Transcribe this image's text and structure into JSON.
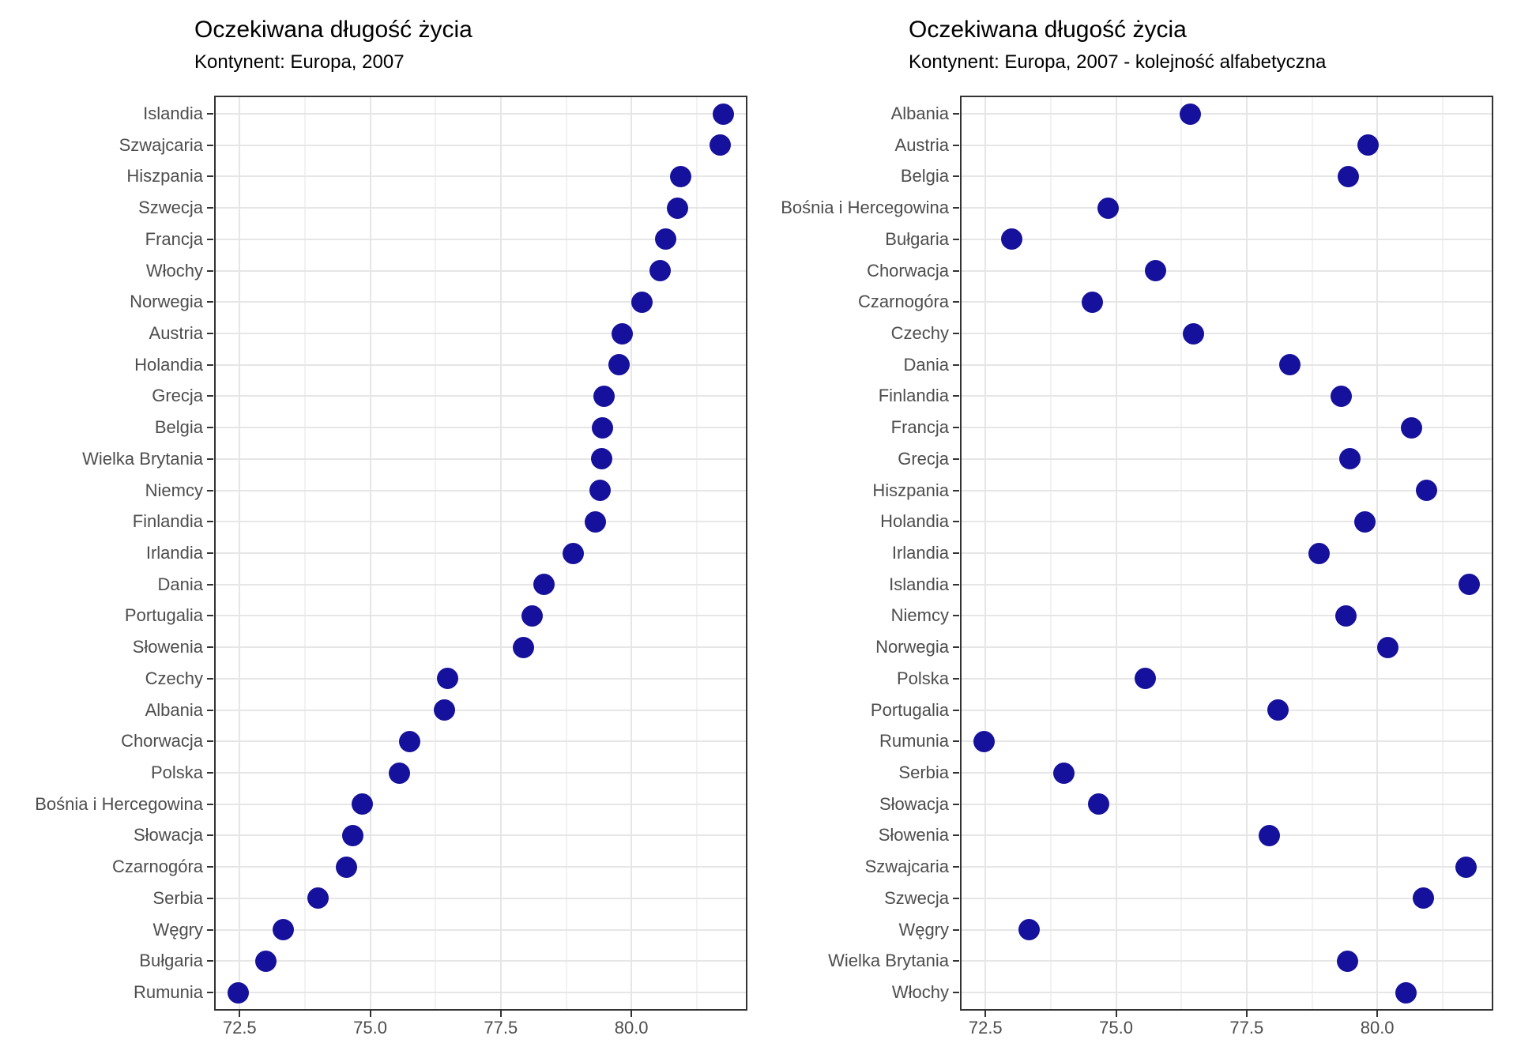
{
  "colors": {
    "point": "#16119C",
    "grid_major": "#E6E6E6",
    "grid_minor": "#F2F2F2",
    "axis_text": "#4D4D4D",
    "panel_border": "#333333",
    "title_text": "#000000",
    "background": "#FFFFFF"
  },
  "chart_data": [
    {
      "type": "scatter",
      "variant": "cleveland-dotplot",
      "title": "Oczekiwana długość życia",
      "subtitle": "Kontynent: Europa, 2007",
      "xlabel": "",
      "ylabel": "",
      "xlim": [
        72.012,
        82.221
      ],
      "grid": true,
      "legend": "none",
      "x_axis": {
        "ticks": [
          72.5,
          75.0,
          77.5,
          80.0
        ],
        "tick_labels": [
          "72.5",
          "75.0",
          "77.5",
          "80.0"
        ],
        "minor_ticks": [
          73.75,
          76.25,
          78.75,
          81.25
        ]
      },
      "categories": [
        "Islandia",
        "Szwajcaria",
        "Hiszpania",
        "Szwecja",
        "Francja",
        "Włochy",
        "Norwegia",
        "Austria",
        "Holandia",
        "Grecja",
        "Belgia",
        "Wielka Brytania",
        "Niemcy",
        "Finlandia",
        "Irlandia",
        "Dania",
        "Portugalia",
        "Słowenia",
        "Czechy",
        "Albania",
        "Chorwacja",
        "Polska",
        "Bośnia i Hercegowina",
        "Słowacja",
        "Czarnogóra",
        "Serbia",
        "Węgry",
        "Bułgaria",
        "Rumunia"
      ],
      "values": [
        81.757,
        81.701,
        80.941,
        80.884,
        80.657,
        80.546,
        80.196,
        79.829,
        79.762,
        79.483,
        79.441,
        79.425,
        79.406,
        79.313,
        78.885,
        78.332,
        78.098,
        77.926,
        76.486,
        76.423,
        75.748,
        75.563,
        74.852,
        74.663,
        74.543,
        74.002,
        73.338,
        73.005,
        72.476
      ]
    },
    {
      "type": "scatter",
      "variant": "cleveland-dotplot",
      "title": "Oczekiwana długość życia",
      "subtitle": "Kontynent: Europa, 2007 - kolejność alfabetyczna",
      "xlabel": "",
      "ylabel": "",
      "xlim": [
        72.012,
        82.221
      ],
      "grid": true,
      "legend": "none",
      "x_axis": {
        "ticks": [
          72.5,
          75.0,
          77.5,
          80.0
        ],
        "tick_labels": [
          "72.5",
          "75.0",
          "77.5",
          "80.0"
        ],
        "minor_ticks": [
          73.75,
          76.25,
          78.75,
          81.25
        ]
      },
      "categories": [
        "Albania",
        "Austria",
        "Belgia",
        "Bośnia i Hercegowina",
        "Bułgaria",
        "Chorwacja",
        "Czarnogóra",
        "Czechy",
        "Dania",
        "Finlandia",
        "Francja",
        "Grecja",
        "Hiszpania",
        "Holandia",
        "Irlandia",
        "Islandia",
        "Niemcy",
        "Norwegia",
        "Polska",
        "Portugalia",
        "Rumunia",
        "Serbia",
        "Słowacja",
        "Słowenia",
        "Szwajcaria",
        "Szwecja",
        "Węgry",
        "Wielka Brytania",
        "Włochy"
      ],
      "values": [
        76.423,
        79.829,
        79.441,
        74.852,
        73.005,
        75.748,
        74.543,
        76.486,
        78.332,
        79.313,
        80.657,
        79.483,
        80.941,
        79.762,
        78.885,
        81.757,
        79.406,
        80.196,
        75.563,
        78.098,
        72.476,
        74.002,
        74.663,
        77.926,
        81.701,
        80.884,
        73.338,
        79.425,
        80.546
      ]
    }
  ]
}
